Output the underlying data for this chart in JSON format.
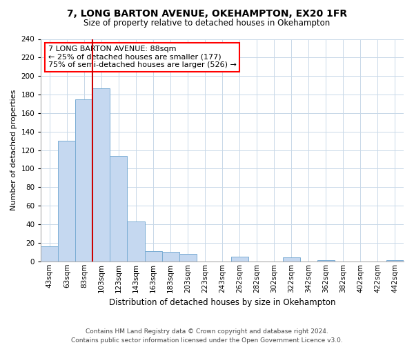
{
  "title": "7, LONG BARTON AVENUE, OKEHAMPTON, EX20 1FR",
  "subtitle": "Size of property relative to detached houses in Okehampton",
  "xlabel": "Distribution of detached houses by size in Okehampton",
  "ylabel": "Number of detached properties",
  "bar_labels": [
    "43sqm",
    "63sqm",
    "83sqm",
    "103sqm",
    "123sqm",
    "143sqm",
    "163sqm",
    "183sqm",
    "203sqm",
    "223sqm",
    "243sqm",
    "262sqm",
    "282sqm",
    "302sqm",
    "322sqm",
    "342sqm",
    "362sqm",
    "382sqm",
    "402sqm",
    "422sqm",
    "442sqm"
  ],
  "bar_values": [
    16,
    130,
    175,
    187,
    114,
    43,
    11,
    10,
    8,
    0,
    0,
    5,
    0,
    0,
    4,
    0,
    1,
    0,
    0,
    0,
    1
  ],
  "bar_color": "#c5d8f0",
  "bar_edge_color": "#7aadd4",
  "vline_color": "#cc0000",
  "ylim": [
    0,
    240
  ],
  "yticks": [
    0,
    20,
    40,
    60,
    80,
    100,
    120,
    140,
    160,
    180,
    200,
    220,
    240
  ],
  "annotation_line1": "7 LONG BARTON AVENUE: 88sqm",
  "annotation_line2": "← 25% of detached houses are smaller (177)",
  "annotation_line3": "75% of semi-detached houses are larger (526) →",
  "footer_line1": "Contains HM Land Registry data © Crown copyright and database right 2024.",
  "footer_line2": "Contains public sector information licensed under the Open Government Licence v3.0.",
  "background_color": "#ffffff",
  "grid_color": "#c8d8e8",
  "title_fontsize": 10,
  "subtitle_fontsize": 8.5,
  "ylabel_fontsize": 8,
  "xlabel_fontsize": 8.5,
  "tick_fontsize": 7.5,
  "footer_fontsize": 6.5
}
